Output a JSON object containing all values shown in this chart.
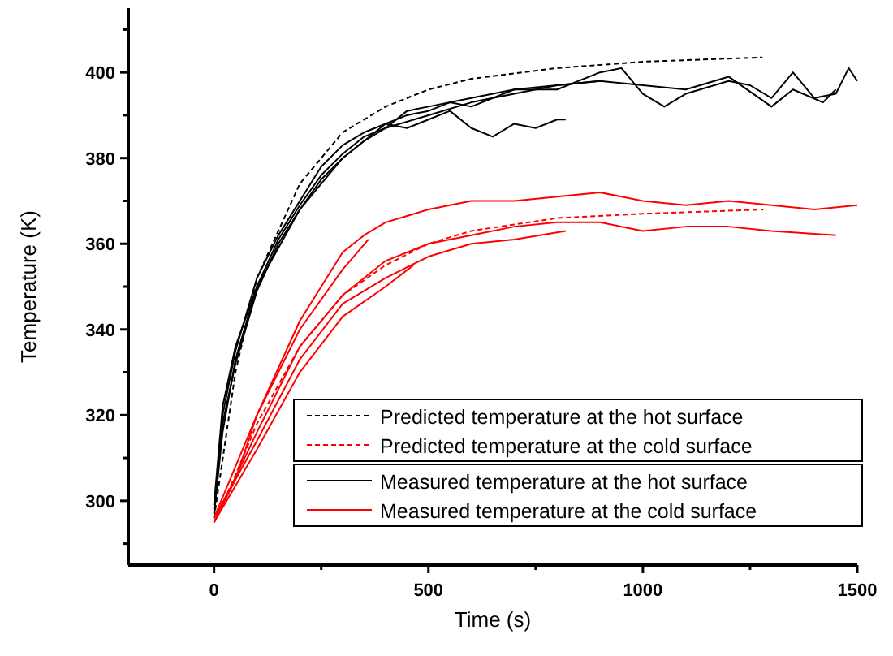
{
  "chart_data": {
    "type": "line",
    "xlabel": "Time (s)",
    "ylabel": "Temperature (K)",
    "xlim": [
      -200,
      1500
    ],
    "ylim": [
      285,
      415
    ],
    "xticks": [
      0,
      {
        "value": 250,
        "label": null
      },
      500,
      {
        "value": 750,
        "label": null
      },
      1000,
      {
        "value": 1250,
        "label": null
      },
      1500
    ],
    "yticks": [
      {
        "value": 290,
        "label": null
      },
      300,
      {
        "value": 310,
        "label": null
      },
      320,
      {
        "value": 330,
        "label": null
      },
      340,
      {
        "value": 350,
        "label": null
      },
      360,
      {
        "value": 370,
        "label": null
      },
      380,
      {
        "value": 390,
        "label": null
      },
      400,
      {
        "value": 410,
        "label": null
      }
    ],
    "grid": false,
    "legend": "bottom right",
    "series": [
      {
        "name": "Predicted temperature at the hot surface",
        "color": "#000000",
        "line_style": "dashed",
        "x": [
          0,
          50,
          100,
          200,
          300,
          400,
          500,
          600,
          800,
          1000,
          1279
        ],
        "values": [
          296,
          330,
          352,
          374,
          386,
          392,
          396,
          398.5,
          401,
          402.5,
          403.5
        ]
      },
      {
        "name": "Predicted temperature at the cold surface",
        "color": "#ff0000",
        "line_style": "dashed",
        "x": [
          0,
          50,
          100,
          200,
          300,
          400,
          500,
          600,
          800,
          1000,
          1281
        ],
        "values": [
          295,
          306,
          318,
          336,
          348,
          355,
          360,
          363,
          366,
          367,
          368
        ]
      },
      {
        "name": "Measured temperature at the hot surface",
        "color": "#000000",
        "line_style": "solid",
        "x": [
          0,
          20,
          50,
          100,
          150,
          200,
          250,
          300,
          350,
          400,
          450,
          500,
          550,
          600,
          700,
          800,
          900,
          950,
          1000,
          1050,
          1100,
          1200,
          1250,
          1300,
          1350,
          1400,
          1450,
          1480,
          1500
        ],
        "values": [
          296,
          320,
          335,
          352,
          362,
          370,
          378,
          383,
          386,
          388,
          390,
          391,
          393,
          392,
          396,
          396,
          400,
          401,
          395,
          392,
          395,
          398,
          397,
          394,
          400,
          394,
          395,
          401,
          398
        ]
      },
      {
        "color": "#000000",
        "line_style": "solid",
        "x": [
          0,
          20,
          50,
          100,
          150,
          200,
          250,
          300,
          350,
          400,
          500,
          600,
          700,
          800,
          900,
          1000,
          1100,
          1200,
          1300,
          1350,
          1420,
          1450
        ],
        "values": [
          298,
          318,
          332,
          349,
          360,
          368,
          375,
          380,
          384,
          387,
          390,
          393,
          395,
          397,
          398,
          397,
          396,
          399,
          392,
          396,
          393,
          396
        ]
      },
      {
        "color": "#000000",
        "line_style": "solid",
        "x": [
          0,
          20,
          50,
          100,
          200,
          300,
          400,
          450,
          500,
          550,
          600,
          650,
          700,
          750,
          800,
          820
        ],
        "values": [
          297,
          316,
          333,
          350,
          368,
          380,
          388,
          387,
          389,
          391,
          387,
          385,
          388,
          387,
          389,
          389
        ]
      },
      {
        "color": "#000000",
        "line_style": "solid",
        "x": [
          0,
          20,
          50,
          100,
          150,
          200,
          250,
          300,
          350,
          400,
          450,
          500,
          600,
          700,
          800,
          900
        ],
        "values": [
          299,
          322,
          336,
          350,
          361,
          369,
          376,
          381,
          385,
          387,
          391,
          392,
          394,
          396,
          397,
          398
        ]
      },
      {
        "name": "Measured temperature at the cold surface",
        "color": "#ff0000",
        "line_style": "solid",
        "x": [
          0,
          50,
          100,
          200,
          300,
          350,
          400,
          500,
          600,
          700,
          800,
          900,
          1000,
          1100,
          1200,
          1300,
          1400,
          1500
        ],
        "values": [
          295,
          305,
          320,
          342,
          358,
          362,
          365,
          368,
          370,
          370,
          371,
          372,
          370,
          369,
          370,
          369,
          368,
          369
        ]
      },
      {
        "color": "#ff0000",
        "line_style": "solid",
        "x": [
          0,
          100,
          200,
          300,
          400,
          500,
          600,
          700,
          800,
          900,
          1000,
          1100,
          1200,
          1300,
          1450
        ],
        "values": [
          295,
          316,
          336,
          348,
          356,
          360,
          362,
          364,
          365,
          365,
          363,
          364,
          364,
          363,
          362
        ]
      },
      {
        "color": "#ff0000",
        "line_style": "solid",
        "x": [
          0,
          100,
          200,
          300,
          400,
          500,
          600,
          700,
          820
        ],
        "values": [
          296,
          314,
          333,
          346,
          352,
          357,
          360,
          361,
          363
        ]
      },
      {
        "color": "#ff0000",
        "line_style": "solid",
        "x": [
          0,
          100,
          200,
          300,
          360
        ],
        "values": [
          296,
          320,
          340,
          354,
          361
        ]
      },
      {
        "color": "#ff0000",
        "line_style": "solid",
        "x": [
          0,
          100,
          200,
          300,
          400,
          465
        ],
        "values": [
          295,
          312,
          330,
          343,
          350,
          355
        ]
      }
    ]
  }
}
